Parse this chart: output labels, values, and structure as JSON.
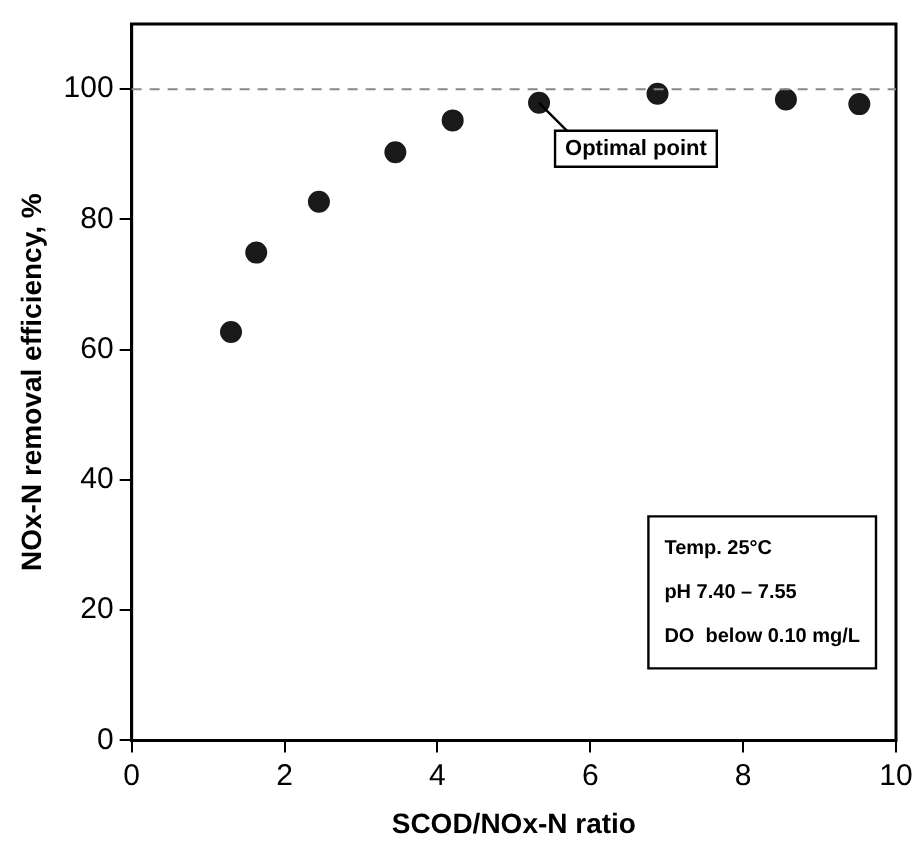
{
  "chart_data": {
    "type": "scatter",
    "xlabel": "SCOD/NOx-N ratio",
    "ylabel": "NOx-N removal efficiency, %",
    "x": [
      1.3,
      1.63,
      2.45,
      3.45,
      4.2,
      5.33,
      6.88,
      8.56,
      9.52
    ],
    "values": [
      62.7,
      74.9,
      82.7,
      90.3,
      95.2,
      97.9,
      99.3,
      98.4,
      97.7
    ],
    "color": "#1a1a1a",
    "marker": "circle",
    "xlim": [
      0,
      10
    ],
    "xticks": [
      0,
      2,
      4,
      6,
      8,
      10
    ],
    "ylim": [
      0,
      110
    ],
    "yticks": [
      0,
      20,
      40,
      60,
      80,
      100
    ],
    "grid": false,
    "legend": false,
    "ref_lines": [
      {
        "axis": "y",
        "value": 100,
        "line_style": "dashed",
        "color": "#888888"
      }
    ],
    "annotations": [
      {
        "text": "Optimal point",
        "x": 5.33,
        "y": 97.9
      },
      "Temp. 25°C",
      "pH 7.40 – 7.55",
      "DO  below 0.10 mg/L"
    ]
  }
}
